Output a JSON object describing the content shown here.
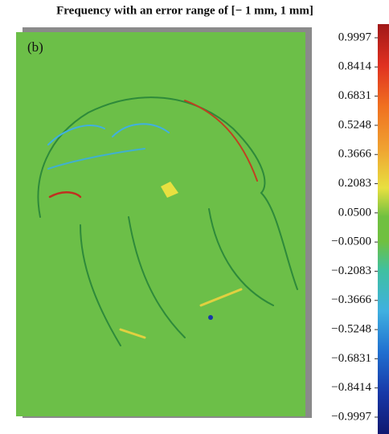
{
  "chart_data": {
    "type": "colormap",
    "title": "Frequency with an error range of [− 1 mm, 1 mm]",
    "panel_label": "(b)",
    "colorbar_ticks": [
      {
        "value": 0.9997,
        "label": "0.9997"
      },
      {
        "value": 0.8414,
        "label": "0.8414"
      },
      {
        "value": 0.6831,
        "label": "0.6831"
      },
      {
        "value": 0.5248,
        "label": "0.5248"
      },
      {
        "value": 0.3666,
        "label": "0.3666"
      },
      {
        "value": 0.2083,
        "label": "0.2083"
      },
      {
        "value": 0.05,
        "label": "0.0500"
      },
      {
        "value": -0.05,
        "label": "−0.0500"
      },
      {
        "value": -0.2083,
        "label": "−0.2083"
      },
      {
        "value": -0.3666,
        "label": "−0.3666"
      },
      {
        "value": -0.5248,
        "label": "−0.5248"
      },
      {
        "value": -0.6831,
        "label": "−0.6831"
      },
      {
        "value": -0.8414,
        "label": "−0.8414"
      },
      {
        "value": -0.9997,
        "label": "−0.9997"
      }
    ]
  }
}
